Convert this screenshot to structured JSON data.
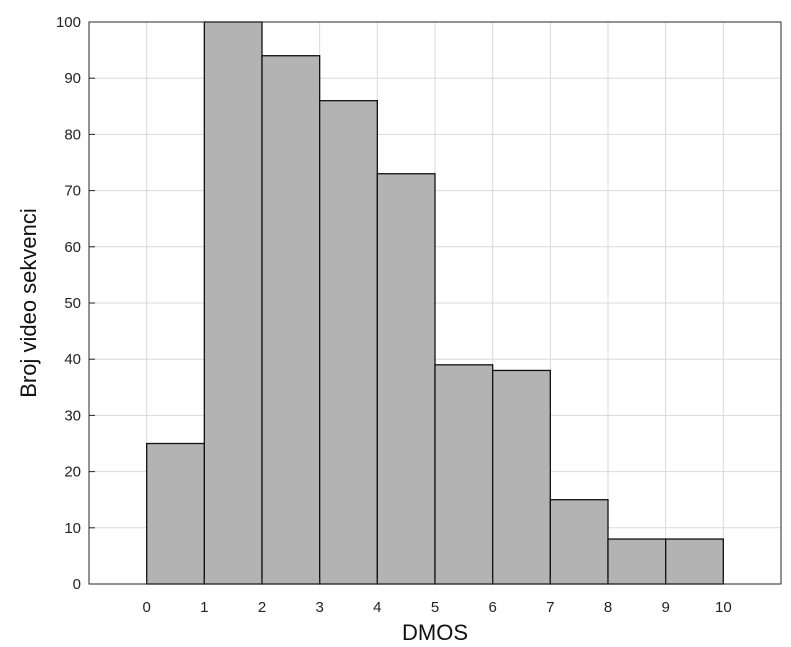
{
  "chart_data": {
    "type": "bar",
    "subtype": "histogram",
    "bin_edges": [
      0,
      1,
      2,
      3,
      4,
      5,
      6,
      7,
      8,
      9,
      10
    ],
    "values": [
      25,
      100,
      94,
      86,
      73,
      39,
      38,
      15,
      8,
      8
    ],
    "xlabel": "DMOS",
    "ylabel": "Broj video sekvenci",
    "xlim": [
      -1,
      11
    ],
    "ylim": [
      0,
      100
    ],
    "xticks": [
      "0",
      "1",
      "2",
      "3",
      "4",
      "5",
      "6",
      "7",
      "8",
      "9",
      "10"
    ],
    "yticks": [
      "0",
      "10",
      "20",
      "30",
      "40",
      "50",
      "60",
      "70",
      "80",
      "90",
      "100"
    ],
    "grid": true,
    "bar_color": "#b3b3b3",
    "edge_color": "#111111"
  }
}
